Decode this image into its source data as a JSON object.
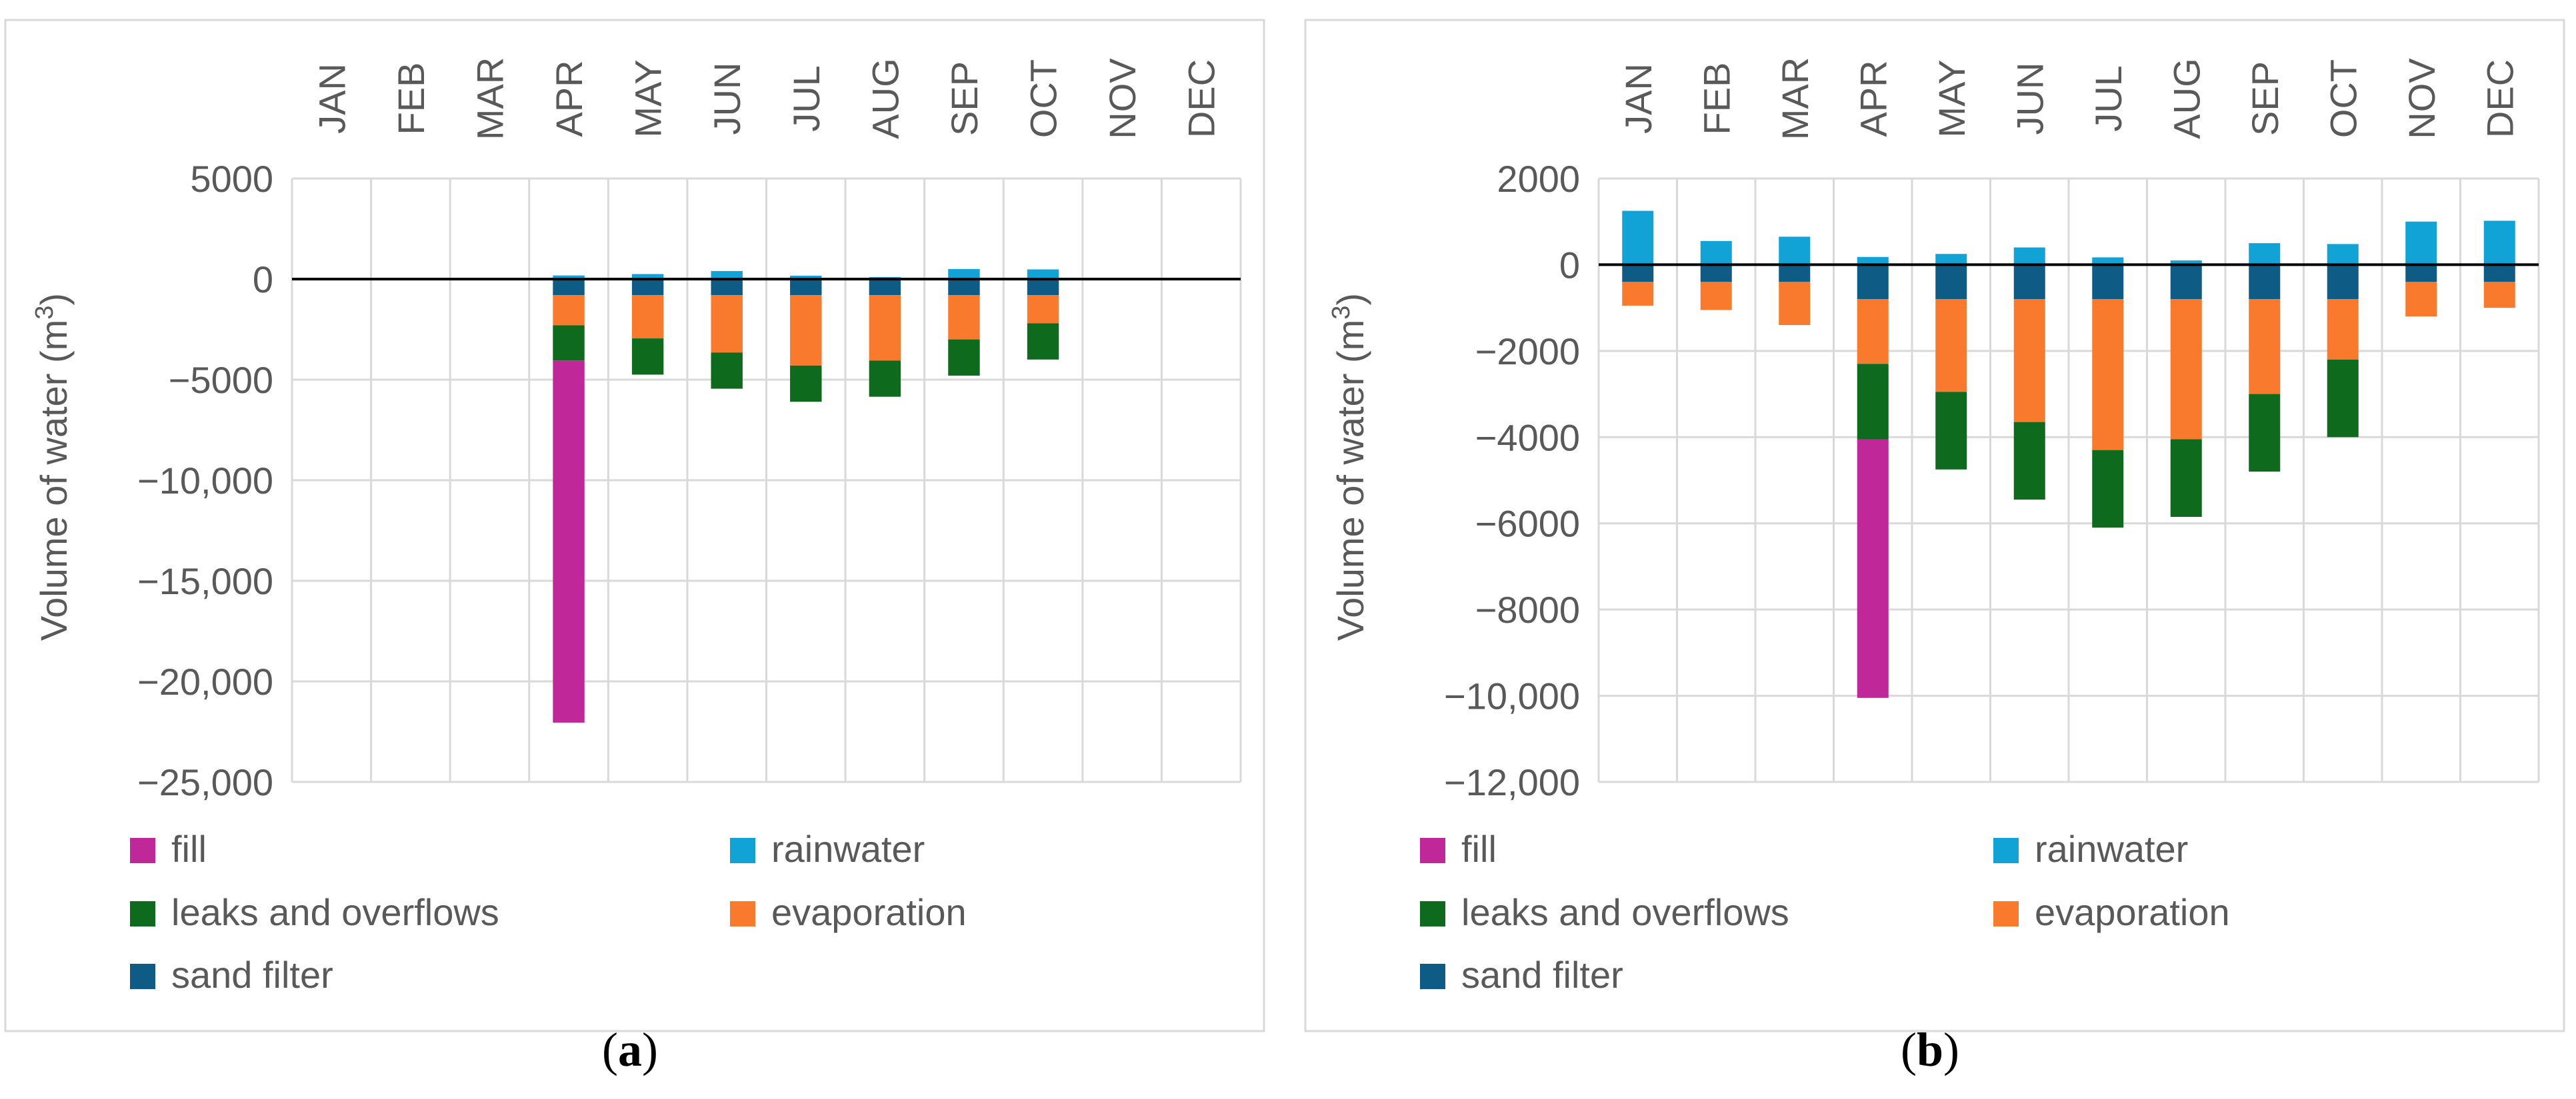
{
  "colors": {
    "fill": "#C0289A",
    "rainwater": "#11A3D6",
    "leaks and overflows": "#0E6B1E",
    "evaporation": "#F97A2D",
    "sand filter": "#0E5C86",
    "grid": "#D9D9D9",
    "frame": "#D9D9D9",
    "zero": "#000000"
  },
  "chart_data": [
    {
      "type": "bar",
      "stacked": true,
      "panel_label": "(a)",
      "ylabel_text": "Volume of water (m",
      "ylabel_sup": "3",
      "ylabel_close": ")",
      "ylim": [
        -25000,
        5000
      ],
      "yticks": [
        5000,
        0,
        -5000,
        -10000,
        -15000,
        -20000,
        -25000
      ],
      "ytick_labels": [
        "5000",
        "0",
        "−5000",
        "−10,000",
        "−15,000",
        "−20,000",
        "−25,000"
      ],
      "grid": true,
      "legend_position": "bottom",
      "categories": [
        "JAN",
        "FEB",
        "MAR",
        "APR",
        "MAY",
        "JUN",
        "JUL",
        "AUG",
        "SEP",
        "OCT",
        "NOV",
        "DEC"
      ],
      "series": [
        {
          "name": "fill",
          "values": [
            0,
            0,
            0,
            -18000,
            0,
            0,
            0,
            0,
            0,
            0,
            0,
            0
          ]
        },
        {
          "name": "rainwater",
          "values": [
            0,
            0,
            0,
            180,
            250,
            400,
            170,
            100,
            500,
            480,
            0,
            0
          ]
        },
        {
          "name": "leaks and overflows",
          "values": [
            0,
            0,
            0,
            -1750,
            -1800,
            -1800,
            -1800,
            -1800,
            -1800,
            -1800,
            0,
            0
          ]
        },
        {
          "name": "evaporation",
          "values": [
            0,
            0,
            0,
            -1500,
            -2150,
            -2850,
            -3500,
            -3250,
            -2200,
            -1400,
            0,
            0
          ]
        },
        {
          "name": "sand filter",
          "values": [
            0,
            0,
            0,
            -800,
            -800,
            -800,
            -800,
            -800,
            -800,
            -800,
            0,
            0
          ]
        }
      ]
    },
    {
      "type": "bar",
      "stacked": true,
      "panel_label": "(b)",
      "ylabel_text": "Volume of water (m",
      "ylabel_sup": "3",
      "ylabel_close": ")",
      "ylim": [
        -12000,
        2000
      ],
      "yticks": [
        2000,
        0,
        -2000,
        -4000,
        -6000,
        -8000,
        -10000,
        -12000
      ],
      "ytick_labels": [
        "2000",
        "0",
        "−2000",
        "−4000",
        "−6000",
        "−8000",
        "−10,000",
        "−12,000"
      ],
      "grid": true,
      "legend_position": "bottom",
      "categories": [
        "JAN",
        "FEB",
        "MAR",
        "APR",
        "MAY",
        "JUN",
        "JUL",
        "AUG",
        "SEP",
        "OCT",
        "NOV",
        "DEC"
      ],
      "series": [
        {
          "name": "fill",
          "values": [
            0,
            0,
            0,
            -6000,
            0,
            0,
            0,
            0,
            0,
            0,
            0,
            0
          ]
        },
        {
          "name": "rainwater",
          "values": [
            1250,
            550,
            650,
            180,
            250,
            400,
            170,
            100,
            500,
            480,
            1000,
            1020
          ]
        },
        {
          "name": "leaks and overflows",
          "values": [
            0,
            0,
            0,
            -1750,
            -1800,
            -1800,
            -1800,
            -1800,
            -1800,
            -1800,
            0,
            0
          ]
        },
        {
          "name": "evaporation",
          "values": [
            -550,
            -650,
            -1000,
            -1500,
            -2150,
            -2850,
            -3500,
            -3250,
            -2200,
            -1400,
            -800,
            -600
          ]
        },
        {
          "name": "sand filter",
          "values": [
            -400,
            -400,
            -400,
            -800,
            -800,
            -800,
            -800,
            -800,
            -800,
            -800,
            -400,
            -400
          ]
        }
      ]
    }
  ]
}
